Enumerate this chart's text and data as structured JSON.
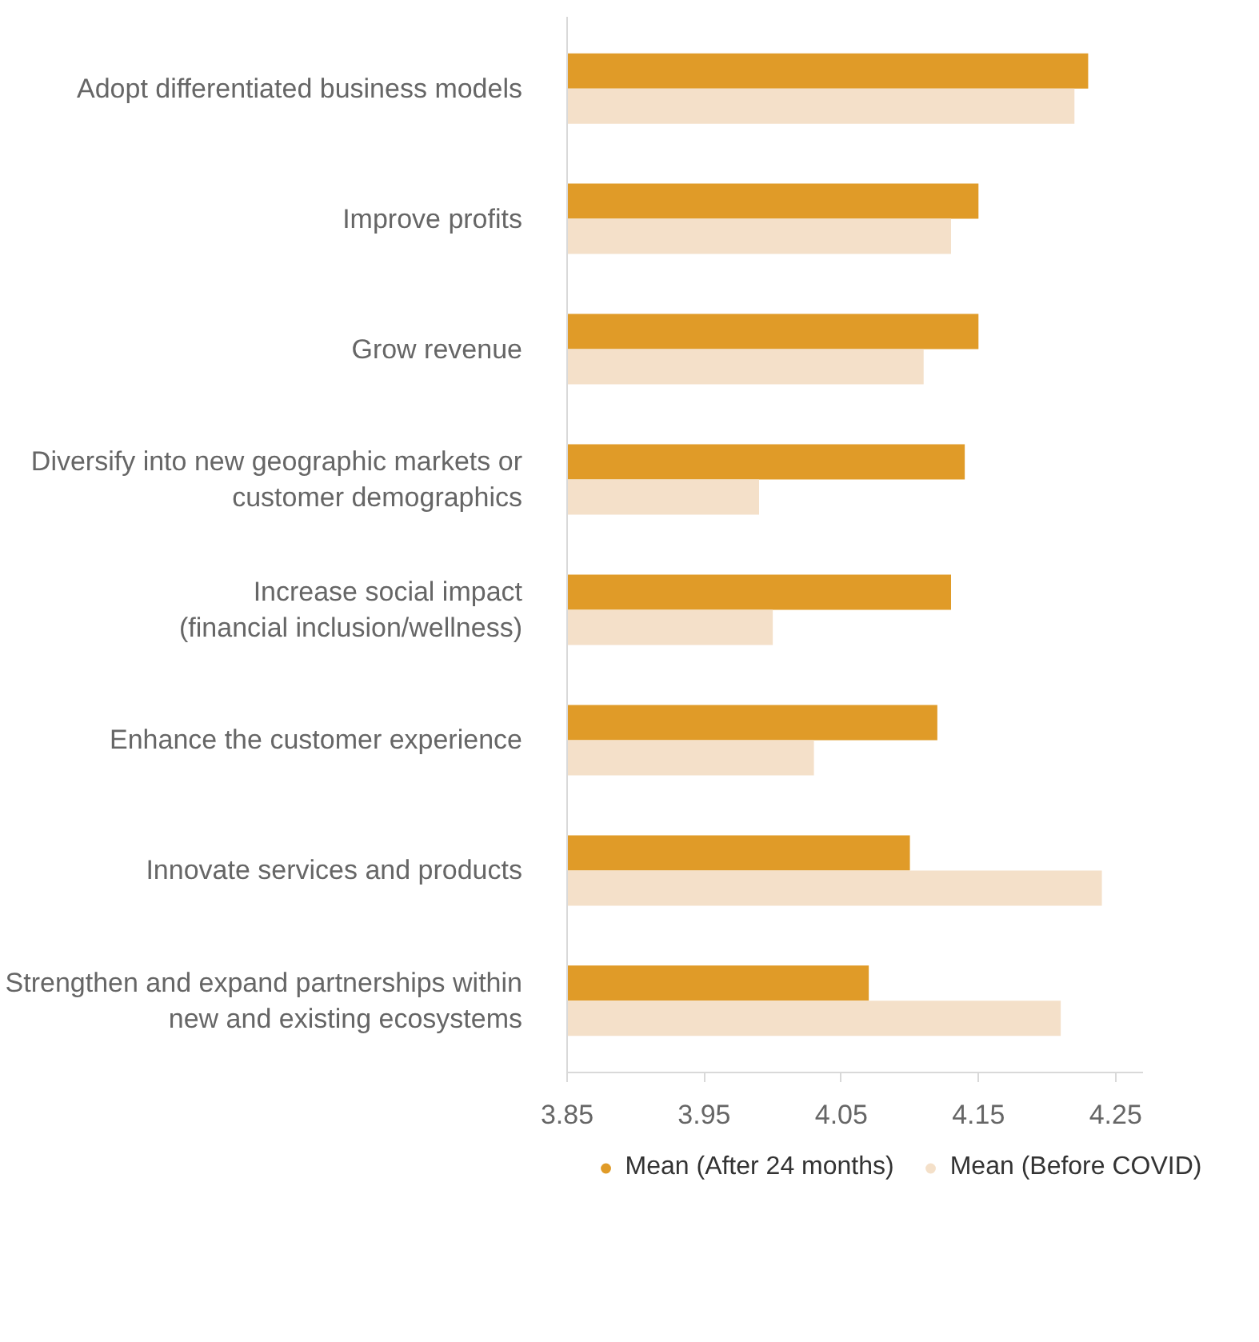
{
  "chart_data": {
    "type": "bar",
    "orientation": "horizontal",
    "categories": [
      "Adopt differentiated business models",
      "Improve profits",
      "Grow revenue",
      "Diversify into new geographic markets or\ncustomer demographics",
      "Increase social impact\n(financial inclusion/wellness)",
      "Enhance the customer experience",
      "Innovate services and products",
      "Strengthen and expand partnerships within\nnew and existing ecosystems"
    ],
    "series": [
      {
        "name": "Mean (After 24 months)",
        "color": "#e09b28",
        "values": [
          4.23,
          4.15,
          4.15,
          4.14,
          4.13,
          4.12,
          4.1,
          4.07
        ]
      },
      {
        "name": "Mean (Before COVID)",
        "color": "#f4e0c9",
        "values": [
          4.22,
          4.13,
          4.11,
          3.99,
          4.0,
          4.03,
          4.24,
          4.21
        ]
      }
    ],
    "xlim": [
      3.85,
      4.27
    ],
    "xticks": [
      3.85,
      3.95,
      4.05,
      4.15,
      4.25
    ],
    "grid": false,
    "legend": "bottom"
  }
}
